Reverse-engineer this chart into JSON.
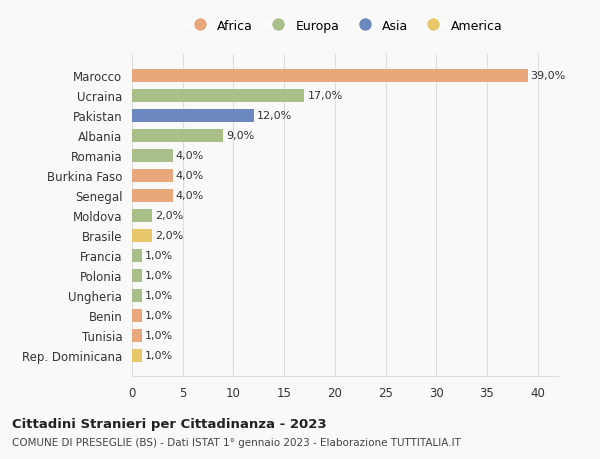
{
  "countries": [
    "Marocco",
    "Ucraina",
    "Pakistan",
    "Albania",
    "Romania",
    "Burkina Faso",
    "Senegal",
    "Moldova",
    "Brasile",
    "Francia",
    "Polonia",
    "Ungheria",
    "Benin",
    "Tunisia",
    "Rep. Dominicana"
  ],
  "values": [
    39.0,
    17.0,
    12.0,
    9.0,
    4.0,
    4.0,
    4.0,
    2.0,
    2.0,
    1.0,
    1.0,
    1.0,
    1.0,
    1.0,
    1.0
  ],
  "continents": [
    "Africa",
    "Europa",
    "Asia",
    "Europa",
    "Europa",
    "Africa",
    "Africa",
    "Europa",
    "America",
    "Europa",
    "Europa",
    "Europa",
    "Africa",
    "Africa",
    "America"
  ],
  "colors": {
    "Africa": "#E8A87C",
    "Europa": "#A8BF8A",
    "Asia": "#6B88BF",
    "America": "#E8C86A"
  },
  "legend_order": [
    "Africa",
    "Europa",
    "Asia",
    "America"
  ],
  "title": "Cittadini Stranieri per Cittadinanza - 2023",
  "subtitle": "COMUNE DI PRESEGLIE (BS) - Dati ISTAT 1° gennaio 2023 - Elaborazione TUTTITALIA.IT",
  "xlim": [
    0,
    42
  ],
  "xticks": [
    0,
    5,
    10,
    15,
    20,
    25,
    30,
    35,
    40
  ],
  "background_color": "#f9f9f9",
  "grid_color": "#dddddd"
}
